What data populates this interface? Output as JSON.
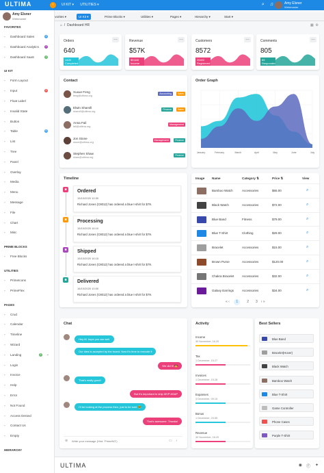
{
  "topbar": {
    "logo": "ULTIMA",
    "menu": [
      "UI KIT ▾",
      "UTILITIES ▾"
    ],
    "user_name": "Amy Elsner",
    "user_role": "Webmaster",
    "accent": "#1e88e5"
  },
  "tabs": [
    {
      "label": "Favorites ▾",
      "icon": "favorites"
    },
    {
      "label": "UI Kit ▾",
      "icon": "star",
      "active": true
    },
    {
      "label": "Prime Blocks ▾",
      "icon": "blocks"
    },
    {
      "label": "Utilities ▾",
      "icon": "utilities"
    },
    {
      "label": "Pages ▾",
      "icon": "pages"
    },
    {
      "label": "Hierarchy ▾",
      "icon": "hierarchy"
    },
    {
      "label": "Start ▾",
      "icon": "start"
    }
  ],
  "sidebar": {
    "user_name": "Amy Elsner",
    "user_role": "Webmaster",
    "sections": [
      {
        "title": "Favorites",
        "items": [
          {
            "label": "Dashboard Sales",
            "icon": "home",
            "badge": "4",
            "badge_color": "#42a5f5"
          },
          {
            "label": "Dashboard Analytics",
            "icon": "chart",
            "badge": "2",
            "badge_color": "#ab47bc"
          },
          {
            "label": "Dashboard SaaS",
            "icon": "saas",
            "badge": "3",
            "badge_color": "#66bb6a"
          }
        ]
      },
      {
        "title": "UI Kit",
        "items": [
          {
            "label": "Form Layout",
            "icon": "id-card"
          },
          {
            "label": "Input",
            "icon": "check-square",
            "badge": "6",
            "badge_color": "#ef5350"
          },
          {
            "label": "Float Label",
            "icon": "bookmark"
          },
          {
            "label": "Invalid State",
            "icon": "exclamation"
          },
          {
            "label": "Button",
            "icon": "mobile"
          },
          {
            "label": "Table",
            "icon": "table",
            "badge": "6",
            "badge_color": "#42a5f5"
          },
          {
            "label": "List",
            "icon": "list"
          },
          {
            "label": "Tree",
            "icon": "share"
          },
          {
            "label": "Panel",
            "icon": "tablet"
          },
          {
            "label": "Overlay",
            "icon": "clone"
          },
          {
            "label": "Media",
            "icon": "image"
          },
          {
            "label": "Menu",
            "icon": "bars"
          },
          {
            "label": "Message",
            "icon": "comment"
          },
          {
            "label": "File",
            "icon": "file"
          },
          {
            "label": "Chart",
            "icon": "chart-bar"
          },
          {
            "label": "Misc",
            "icon": "circle"
          }
        ]
      },
      {
        "title": "Prime Blocks",
        "items": [
          {
            "label": "Free Blocks",
            "icon": "eye"
          }
        ]
      },
      {
        "title": "Utilities",
        "items": [
          {
            "label": "PrimeIcons",
            "icon": "prime"
          },
          {
            "label": "PrimeFlex",
            "icon": "desktop"
          }
        ]
      },
      {
        "title": "Pages",
        "items": [
          {
            "label": "Crud",
            "icon": "pencil"
          },
          {
            "label": "Calendar",
            "icon": "calendar"
          },
          {
            "label": "Timeline",
            "icon": "calendar-plus"
          },
          {
            "label": "Wizard",
            "icon": "star"
          },
          {
            "label": "Landing",
            "icon": "globe",
            "badge": "2",
            "badge_color": "#66bb6a",
            "chevron": "⌄"
          },
          {
            "label": "Login",
            "icon": "sign-in"
          },
          {
            "label": "Invoice",
            "icon": "dollar"
          },
          {
            "label": "Help",
            "icon": "question"
          },
          {
            "label": "Error",
            "icon": "times-circle"
          },
          {
            "label": "Not Found",
            "icon": "exclamation-circle"
          },
          {
            "label": "Access Denied",
            "icon": "lock"
          },
          {
            "label": "Contact Us",
            "icon": "pencil"
          },
          {
            "label": "Empty",
            "icon": "circle-off"
          }
        ]
      },
      {
        "title": "Hierarchy",
        "items": []
      }
    ]
  },
  "breadcrumb": "Dashboard HR",
  "stats": [
    {
      "title": "Orders",
      "value": "640",
      "tag": "1420\nCompleted",
      "color": "#26c6da",
      "icon": "shopping-cart"
    },
    {
      "title": "Revenue",
      "value": "$57K",
      "tag": "$9,640\nIncome",
      "color": "#ec407a",
      "icon": "dollar"
    },
    {
      "title": "Customers",
      "value": "8572",
      "tag": "25402\nRegistered",
      "color": "#ec407a",
      "icon": "users"
    },
    {
      "title": "Comments",
      "value": "805",
      "tag": "85\nResponded",
      "color": "#26a69a",
      "icon": "comments"
    }
  ],
  "contact": {
    "title": "Contact",
    "rows": [
      {
        "name": "Xuxue Feng",
        "email": "feng@ultima.org",
        "tags": [
          {
            "t": "Accounting",
            "c": "#5c6bc0"
          },
          {
            "t": "Sales",
            "c": "#ff9800"
          }
        ],
        "avatar": "#795548"
      },
      {
        "name": "Elwin Sharvill",
        "email": "sharvill@ultima.org",
        "tags": [
          {
            "t": "Finance",
            "c": "#26a69a"
          },
          {
            "t": "Sales",
            "c": "#ff9800"
          }
        ],
        "avatar": "#546e7a"
      },
      {
        "name": "Anna Fali",
        "email": "fali@ultima.org",
        "tags": [
          {
            "t": "Management",
            "c": "#ec407a"
          }
        ],
        "avatar": "#8d6e63"
      },
      {
        "name": "Jon Stone",
        "email": "stone@ultima.org",
        "tags": [
          {
            "t": "Management",
            "c": "#ec407a"
          },
          {
            "t": "Finance",
            "c": "#26a69a"
          }
        ],
        "avatar": "#5d4037"
      },
      {
        "name": "Stephen Shaw",
        "email": "shaw@ultima.org",
        "tags": [
          {
            "t": "Finance",
            "c": "#26a69a"
          }
        ],
        "avatar": "#6d4c41"
      }
    ]
  },
  "order_graph": {
    "title": "Order Graph"
  },
  "chart_data": {
    "type": "area",
    "title": "Order Graph",
    "categories": [
      "January",
      "February",
      "March",
      "April",
      "May",
      "June",
      "July"
    ],
    "series": [
      {
        "name": "",
        "color": "#26c6da",
        "values": [
          12,
          15,
          28,
          30,
          18,
          9,
          2
        ]
      },
      {
        "name": "",
        "color": "#5c6bc0",
        "values": [
          5,
          12,
          22,
          15,
          23,
          30,
          2
        ]
      }
    ],
    "ylim": [
      0,
      32
    ],
    "grid": true
  },
  "timeline": {
    "title": "Timeline",
    "events": [
      {
        "status": "Ordered",
        "date": "15/10/2020 10:30",
        "text": "Richard Jones (C8012) has ordered a blue t-shirt for $79.",
        "color": "#ec407a",
        "icon": "shopping-cart"
      },
      {
        "status": "Processing",
        "date": "15/10/2020 16:10",
        "text": "Richard Jones (C8012) has ordered a blue t-shirt for $79.",
        "color": "#ff9800",
        "icon": "cog"
      },
      {
        "status": "Shipped",
        "date": "15/10/2020 16:15",
        "text": "Richard Jones (C8012) has ordered a blue t-shirt for $79.",
        "color": "#ab47bc",
        "icon": "shipping"
      },
      {
        "status": "Delivered",
        "date": "16/10/2020 10:00",
        "text": "Richard Jones (C8012) has ordered a blue t-shirt for $79.",
        "color": "#26a69a",
        "icon": "check"
      }
    ]
  },
  "products": {
    "headers": [
      "Image",
      "Name",
      "Category ⇅",
      "Price ⇅",
      "View"
    ],
    "rows": [
      {
        "name": "Bamboo Watch",
        "category": "Accessories",
        "price": "$65.00",
        "img": "#8d6e63"
      },
      {
        "name": "Black Watch",
        "category": "Accessories",
        "price": "$72.00",
        "img": "#424242"
      },
      {
        "name": "Blue Band",
        "category": "Fitness",
        "price": "$79.00",
        "img": "#3949ab"
      },
      {
        "name": "Blue T-Shirt",
        "category": "Clothing",
        "price": "$29.00",
        "img": "#1e88e5"
      },
      {
        "name": "Bracelet",
        "category": "Accessories",
        "price": "$15.00",
        "img": "#9e9e9e"
      },
      {
        "name": "Brown Purse",
        "category": "Accessories",
        "price": "$120.00",
        "img": "#8d4a2a"
      },
      {
        "name": "Chakra Bracelet",
        "category": "Accessories",
        "price": "$32.00",
        "img": "#757575"
      },
      {
        "name": "Galaxy Earrings",
        "category": "Accessories",
        "price": "$34.00",
        "img": "#6a1b9a"
      }
    ],
    "pager": {
      "prev": "« ‹",
      "pages": [
        "1",
        "2",
        "3"
      ],
      "current": "1",
      "next": "› »"
    }
  },
  "chat": {
    "title": "Chat",
    "messages": [
      {
        "side": "left",
        "text": "Hey M. hope you are well."
      },
      {
        "side": "left",
        "text": "Our idea is accepted by the board. Now it's time to execute it"
      },
      {
        "side": "right",
        "text": "We did it! 🤠"
      },
      {
        "side": "left",
        "text": "That's really good!"
      },
      {
        "side": "right",
        "text": "But it's important to ship MVP ASAP"
      },
      {
        "side": "left",
        "text": "I'll be looking at the process then, just to be sure 🤓"
      },
      {
        "side": "right",
        "text": "That's awesome. Thanks!"
      }
    ],
    "input_placeholder": "Write your message (Hint: 'PrimeNG')"
  },
  "activity": {
    "title": "Activity",
    "items": [
      {
        "label": "Income",
        "date": "30 November, 16.20",
        "color": "#ffc107",
        "progress": 0.95
      },
      {
        "label": "Tax",
        "date": "1 December, 15.27",
        "color": "#ec407a",
        "progress": 0.55
      },
      {
        "label": "Invoices",
        "date": "1 December, 15.28",
        "color": "#ec407a",
        "progress": 0.55
      },
      {
        "label": "Expanses",
        "date": "3 December, 09.15",
        "color": "#26c6da",
        "progress": 0.55
      },
      {
        "label": "Bonus",
        "date": "1 December, 23.55",
        "color": "#26c6da",
        "progress": 0.55
      },
      {
        "label": "Revenue",
        "date": "30 November, 16.20",
        "color": "#ec407a",
        "progress": 0.55
      }
    ]
  },
  "best_sellers": {
    "title": "Best Sellers",
    "items": [
      {
        "name": "Blue Band",
        "img": "#3949ab"
      },
      {
        "name": "Bracelet(Hover)",
        "img": "#9e9e9e"
      },
      {
        "name": "Black Watch",
        "img": "#424242"
      },
      {
        "name": "Bamboo Watch",
        "img": "#8d6e63"
      },
      {
        "name": "Blue T-Shirt",
        "img": "#1e88e5"
      },
      {
        "name": "Game Controller",
        "img": "#bdbdbd"
      },
      {
        "name": "Phone Cases",
        "img": "#ef5350"
      },
      {
        "name": "Purple T-Shirt",
        "img": "#7e57c2"
      }
    ]
  },
  "footer": {
    "logo": "ULTIMA"
  }
}
